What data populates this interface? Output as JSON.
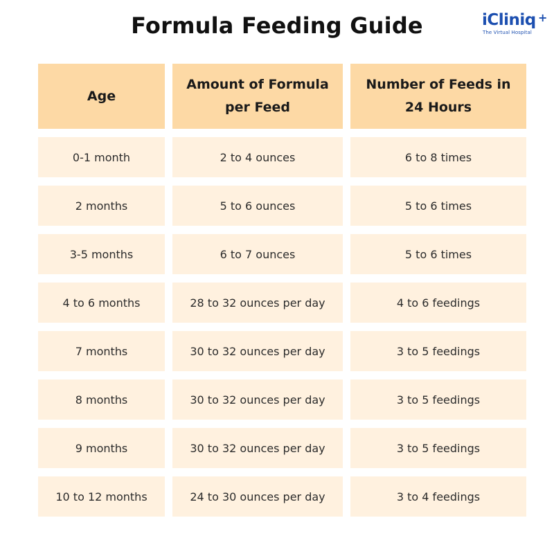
{
  "title": "Formula Feeding Guide",
  "logo": {
    "name": "iCliniq",
    "tagline": "The Virtual Hospital",
    "color": "#1c4fb0"
  },
  "colors": {
    "header_bg": "#fdd9a5",
    "cell_bg": "#fff1df"
  },
  "table": {
    "headers": [
      "Age",
      "Amount of Formula per Feed",
      "Number of Feeds in 24 Hours"
    ],
    "rows": [
      [
        "0-1 month",
        "2 to 4 ounces",
        "6 to 8 times"
      ],
      [
        "2 months",
        "5 to 6 ounces",
        "5 to 6 times"
      ],
      [
        "3-5 months",
        "6 to 7 ounces",
        "5 to 6 times"
      ],
      [
        "4 to 6 months",
        "28 to 32 ounces per day",
        "4 to 6 feedings"
      ],
      [
        "7 months",
        "30 to 32 ounces per day",
        "3 to 5 feedings"
      ],
      [
        "8 months",
        "30 to 32 ounces per day",
        "3 to 5 feedings"
      ],
      [
        "9 months",
        "30 to 32 ounces per day",
        "3 to 5 feedings"
      ],
      [
        "10 to 12 months",
        "24 to 30 ounces per day",
        "3 to 4 feedings"
      ]
    ]
  }
}
